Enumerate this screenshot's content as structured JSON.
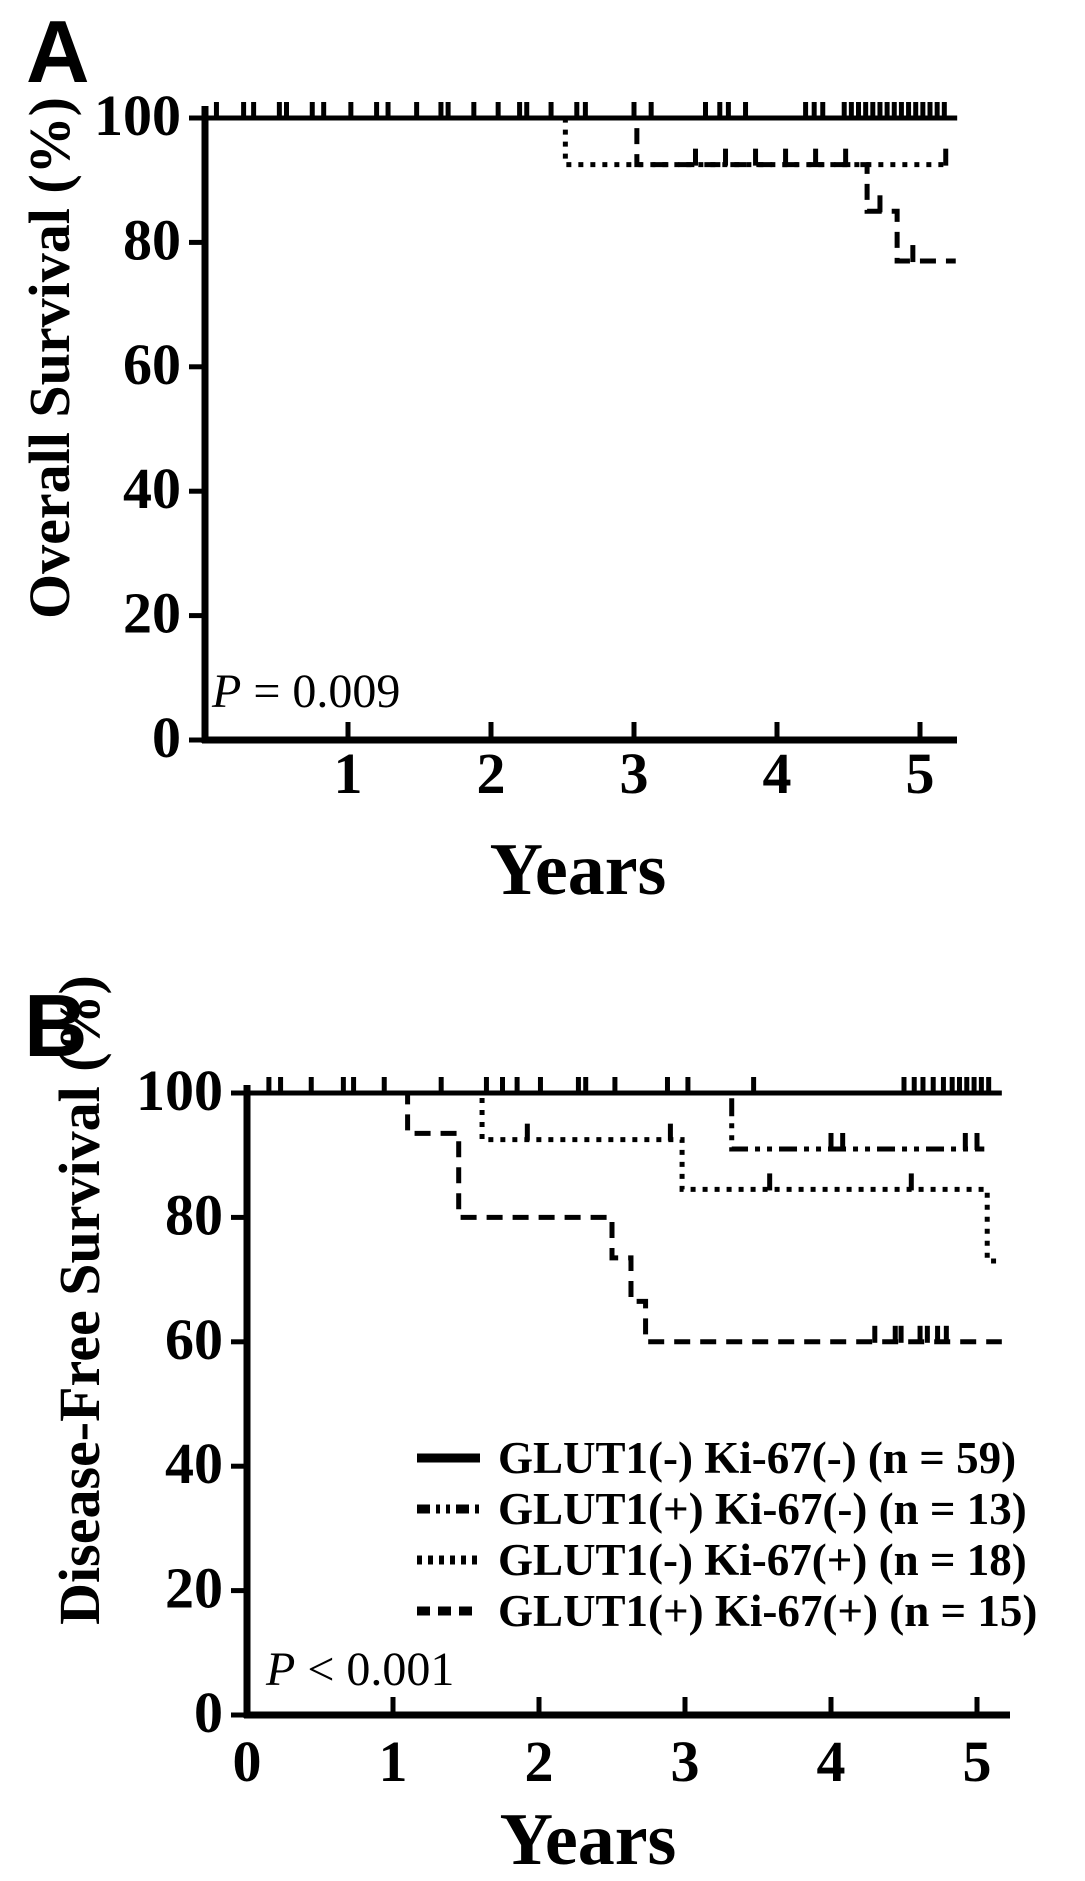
{
  "figure": {
    "background": "#ffffff",
    "ink": "#000000"
  },
  "legend": {
    "location": "panel-B lower right",
    "items": [
      {
        "label": "GLUT1(-) Ki-67(-) (n = 59)",
        "style": "solid"
      },
      {
        "label": "GLUT1(+) Ki-67(-) (n = 13)",
        "style": "dashdotdot"
      },
      {
        "label": "GLUT1(-) Ki-67(+) (n = 18)",
        "style": "dotted"
      },
      {
        "label": "GLUT1(+) Ki-67(+) (n = 15)",
        "style": "dashed"
      }
    ]
  },
  "chart_data": [
    {
      "type": "line",
      "subtype": "kaplan-meier-step",
      "panel": "A",
      "title": "",
      "xlabel": "Years",
      "ylabel": "Overall Survival (%)",
      "p_italic": "P",
      "p_rest": " = 0.009",
      "xlim": [
        0,
        5.3
      ],
      "ylim": [
        0,
        100
      ],
      "xticks": [
        1,
        2,
        3,
        4,
        5
      ],
      "yticks": [
        0,
        20,
        40,
        60,
        80,
        100
      ],
      "grid": false,
      "series": [
        {
          "name": "GLUT1(-) Ki-67(-) (n = 59)",
          "style": "solid",
          "points": [
            [
              0,
              100
            ],
            [
              5.26,
              100
            ]
          ],
          "censors": [
            [
              0.08,
              100
            ],
            [
              0.27,
              100
            ],
            [
              0.34,
              100
            ],
            [
              0.52,
              100
            ],
            [
              0.57,
              100
            ],
            [
              0.75,
              100
            ],
            [
              0.83,
              100
            ],
            [
              1.02,
              100
            ],
            [
              1.2,
              100
            ],
            [
              1.28,
              100
            ],
            [
              1.48,
              100
            ],
            [
              1.65,
              100
            ],
            [
              1.7,
              100
            ],
            [
              1.88,
              100
            ],
            [
              2.05,
              100
            ],
            [
              2.2,
              100
            ],
            [
              2.25,
              100
            ],
            [
              2.42,
              100
            ],
            [
              2.6,
              100
            ],
            [
              2.66,
              100
            ],
            [
              3.0,
              100
            ],
            [
              3.12,
              100
            ],
            [
              3.5,
              100
            ],
            [
              3.6,
              100
            ],
            [
              3.66,
              100
            ],
            [
              3.78,
              100
            ],
            [
              4.2,
              100
            ],
            [
              4.26,
              100
            ],
            [
              4.32,
              100
            ],
            [
              4.47,
              100
            ],
            [
              4.52,
              100
            ],
            [
              4.57,
              100
            ],
            [
              4.62,
              100
            ],
            [
              4.67,
              100
            ],
            [
              4.72,
              100
            ],
            [
              4.77,
              100
            ],
            [
              4.82,
              100
            ],
            [
              4.87,
              100
            ],
            [
              4.92,
              100
            ],
            [
              4.97,
              100
            ],
            [
              5.02,
              100
            ],
            [
              5.07,
              100
            ],
            [
              5.12,
              100
            ],
            [
              5.17,
              100
            ]
          ]
        },
        {
          "name": "GLUT1(+) Ki-67(-) (n = 13)",
          "style": "dashdotdot",
          "points": [
            [
              0,
              100
            ],
            [
              5.2,
              100
            ]
          ],
          "censors": []
        },
        {
          "name": "GLUT1(-) Ki-67(+) (n = 18)",
          "style": "dotted",
          "points": [
            [
              0,
              100
            ],
            [
              2.52,
              100
            ],
            [
              2.52,
              92.5
            ],
            [
              5.2,
              92.5
            ]
          ],
          "censors": [
            [
              3.43,
              92.5
            ],
            [
              3.64,
              92.5
            ],
            [
              3.85,
              92.5
            ],
            [
              4.06,
              92.5
            ],
            [
              4.27,
              92.5
            ],
            [
              4.48,
              92.5
            ],
            [
              5.18,
              92.5
            ]
          ]
        },
        {
          "name": "GLUT1(+) Ki-67(+) (n = 15)",
          "style": "dashed",
          "points": [
            [
              0,
              100
            ],
            [
              3.02,
              100
            ],
            [
              3.02,
              92.5
            ],
            [
              4.63,
              92.5
            ],
            [
              4.63,
              85
            ],
            [
              4.84,
              85
            ],
            [
              4.84,
              77
            ],
            [
              5.25,
              77
            ]
          ],
          "censors": [
            [
              4.72,
              85
            ],
            [
              4.95,
              77
            ]
          ]
        }
      ]
    },
    {
      "type": "line",
      "subtype": "kaplan-meier-step",
      "panel": "B",
      "title": "",
      "xlabel": "Years",
      "ylabel": "Disease-Free Survival (%)",
      "p_italic": "P",
      "p_rest": " < 0.001",
      "xlim": [
        0,
        5.25
      ],
      "ylim": [
        0,
        100
      ],
      "xticks": [
        0,
        1,
        2,
        3,
        4,
        5
      ],
      "yticks": [
        0,
        20,
        40,
        60,
        80,
        100
      ],
      "grid": false,
      "series": [
        {
          "name": "GLUT1(-) Ki-67(-) (n = 59)",
          "style": "solid",
          "points": [
            [
              0,
              100
            ],
            [
              5.17,
              100
            ]
          ],
          "censors": [
            [
              0.15,
              100
            ],
            [
              0.23,
              100
            ],
            [
              0.44,
              100
            ],
            [
              0.66,
              100
            ],
            [
              0.73,
              100
            ],
            [
              0.94,
              100
            ],
            [
              1.33,
              100
            ],
            [
              1.64,
              100
            ],
            [
              1.75,
              100
            ],
            [
              1.85,
              100
            ],
            [
              2.01,
              100
            ],
            [
              2.27,
              100
            ],
            [
              2.32,
              100
            ],
            [
              2.52,
              100
            ],
            [
              2.88,
              100
            ],
            [
              3.02,
              100
            ],
            [
              3.47,
              100
            ],
            [
              4.5,
              100
            ],
            [
              4.57,
              100
            ],
            [
              4.63,
              100
            ],
            [
              4.7,
              100
            ],
            [
              4.77,
              100
            ],
            [
              4.83,
              100
            ],
            [
              4.88,
              100
            ],
            [
              4.93,
              100
            ],
            [
              4.98,
              100
            ],
            [
              5.03,
              100
            ],
            [
              5.08,
              100
            ]
          ]
        },
        {
          "name": "GLUT1(+) Ki-67(-) (n = 13)",
          "style": "dashdotdot",
          "points": [
            [
              0,
              100
            ],
            [
              3.32,
              100
            ],
            [
              3.32,
              91
            ],
            [
              5.05,
              91
            ]
          ],
          "censors": [
            [
              4.0,
              91
            ],
            [
              4.08,
              91
            ],
            [
              4.92,
              91
            ],
            [
              5.0,
              91
            ]
          ]
        },
        {
          "name": "GLUT1(-) Ki-67(+) (n = 18)",
          "style": "dotted",
          "points": [
            [
              0,
              100
            ],
            [
              1.61,
              100
            ],
            [
              1.61,
              92.5
            ],
            [
              2.98,
              92.5
            ],
            [
              2.98,
              84.5
            ],
            [
              5.07,
              84.5
            ],
            [
              5.07,
              73
            ],
            [
              5.16,
              73
            ]
          ],
          "censors": [
            [
              1.92,
              92.5
            ],
            [
              2.9,
              92.5
            ],
            [
              3.58,
              84.5
            ],
            [
              4.55,
              84.5
            ]
          ]
        },
        {
          "name": "GLUT1(+) Ki-67(+) (n = 15)",
          "style": "dashed",
          "points": [
            [
              0,
              100
            ],
            [
              1.1,
              100
            ],
            [
              1.1,
              93.5
            ],
            [
              1.45,
              93.5
            ],
            [
              1.45,
              80
            ],
            [
              2.5,
              80
            ],
            [
              2.5,
              73.5
            ],
            [
              2.63,
              73.5
            ],
            [
              2.63,
              66.5
            ],
            [
              2.73,
              66.5
            ],
            [
              2.73,
              60
            ],
            [
              5.17,
              60
            ]
          ],
          "censors": [
            [
              4.3,
              60
            ],
            [
              4.44,
              60
            ],
            [
              4.48,
              60
            ],
            [
              4.61,
              60
            ],
            [
              4.66,
              60
            ],
            [
              4.73,
              60
            ],
            [
              4.79,
              60
            ]
          ]
        }
      ]
    }
  ]
}
